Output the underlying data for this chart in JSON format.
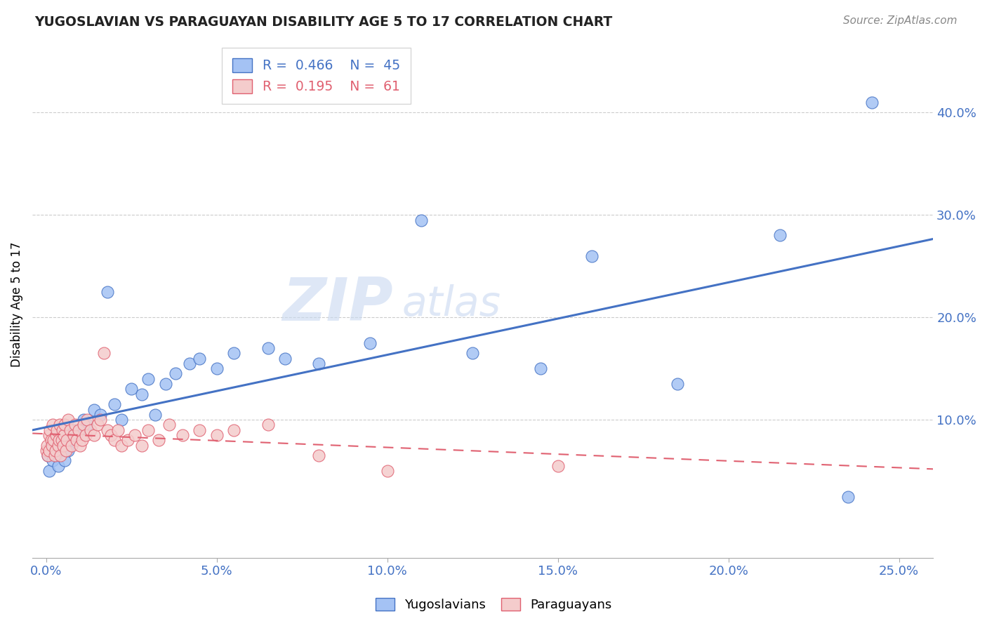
{
  "title": "YUGOSLAVIAN VS PARAGUAYAN DISABILITY AGE 5 TO 17 CORRELATION CHART",
  "source": "Source: ZipAtlas.com",
  "ylabel": "Disability Age 5 to 17",
  "xlim": [
    -0.4,
    26.0
  ],
  "ylim": [
    -3.5,
    46.0
  ],
  "xlabel_vals": [
    0.0,
    5.0,
    10.0,
    15.0,
    20.0,
    25.0
  ],
  "ylabel_vals": [
    10.0,
    20.0,
    30.0,
    40.0
  ],
  "blue_face": "#a4c2f4",
  "blue_edge": "#4472c4",
  "pink_face": "#f4cccc",
  "pink_edge": "#e06070",
  "line_blue": "#4472c4",
  "line_pink": "#e06070",
  "yug_R": "0.466",
  "yug_N": "45",
  "par_R": "0.195",
  "par_N": "61",
  "label_yug": "Yugoslavians",
  "label_par": "Paraguayans",
  "watermark_big": "ZIP",
  "watermark_small": "atlas",
  "bg": "#ffffff",
  "yug_x": [
    0.05,
    0.1,
    0.15,
    0.2,
    0.25,
    0.3,
    0.35,
    0.4,
    0.5,
    0.55,
    0.6,
    0.65,
    0.7,
    0.8,
    0.9,
    1.0,
    1.1,
    1.2,
    1.4,
    1.6,
    1.8,
    2.0,
    2.2,
    2.5,
    2.8,
    3.0,
    3.2,
    3.5,
    3.8,
    4.2,
    4.5,
    5.0,
    5.5,
    6.5,
    7.0,
    8.0,
    9.5,
    11.0,
    12.5,
    14.5,
    16.0,
    18.5,
    21.5,
    23.5,
    24.2
  ],
  "yug_y": [
    6.5,
    5.0,
    7.5,
    6.0,
    8.0,
    6.5,
    5.5,
    7.0,
    7.5,
    6.0,
    8.5,
    7.0,
    8.0,
    9.0,
    8.5,
    9.0,
    10.0,
    9.5,
    11.0,
    10.5,
    22.5,
    11.5,
    10.0,
    13.0,
    12.5,
    14.0,
    10.5,
    13.5,
    14.5,
    15.5,
    16.0,
    15.0,
    16.5,
    17.0,
    16.0,
    15.5,
    17.5,
    29.5,
    16.5,
    15.0,
    26.0,
    13.5,
    28.0,
    2.5,
    41.0
  ],
  "par_x": [
    0.0,
    0.02,
    0.05,
    0.08,
    0.1,
    0.12,
    0.15,
    0.18,
    0.2,
    0.22,
    0.25,
    0.28,
    0.3,
    0.32,
    0.35,
    0.38,
    0.4,
    0.42,
    0.45,
    0.48,
    0.5,
    0.52,
    0.55,
    0.58,
    0.6,
    0.65,
    0.7,
    0.75,
    0.8,
    0.85,
    0.9,
    0.95,
    1.0,
    1.05,
    1.1,
    1.15,
    1.2,
    1.3,
    1.4,
    1.5,
    1.6,
    1.7,
    1.8,
    1.9,
    2.0,
    2.1,
    2.2,
    2.4,
    2.6,
    2.8,
    3.0,
    3.3,
    3.6,
    4.0,
    4.5,
    5.0,
    5.5,
    6.5,
    8.0,
    10.0,
    15.0
  ],
  "par_y": [
    7.0,
    7.5,
    6.5,
    8.5,
    7.0,
    9.0,
    8.0,
    7.5,
    9.5,
    8.0,
    6.5,
    7.0,
    8.5,
    9.0,
    7.5,
    8.0,
    9.5,
    6.5,
    8.0,
    9.0,
    7.5,
    8.5,
    9.5,
    7.0,
    8.0,
    10.0,
    9.0,
    7.5,
    8.5,
    9.5,
    8.0,
    9.0,
    7.5,
    8.0,
    9.5,
    8.5,
    10.0,
    9.0,
    8.5,
    9.5,
    10.0,
    16.5,
    9.0,
    8.5,
    8.0,
    9.0,
    7.5,
    8.0,
    8.5,
    7.5,
    9.0,
    8.0,
    9.5,
    8.5,
    9.0,
    8.5,
    9.0,
    9.5,
    6.5,
    5.0,
    5.5
  ]
}
